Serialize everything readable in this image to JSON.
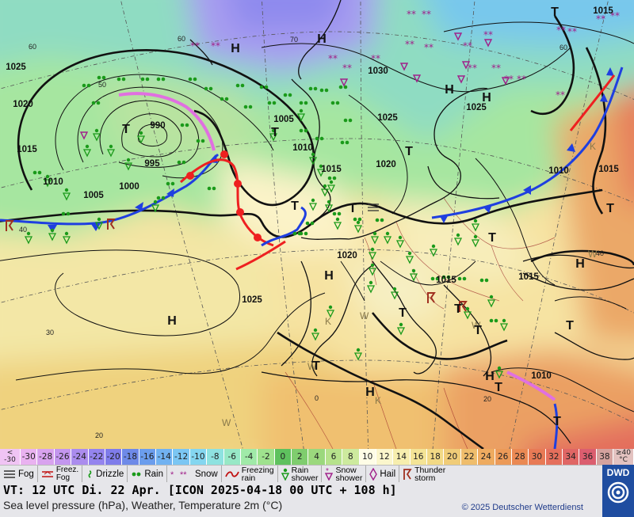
{
  "map": {
    "pressure_labels": [
      {
        "id": "p1",
        "text": "1025"
      },
      {
        "id": "p2",
        "text": "1020"
      },
      {
        "id": "p3",
        "text": "1015"
      },
      {
        "id": "p4",
        "text": "1010"
      },
      {
        "id": "p5",
        "text": "1005"
      },
      {
        "id": "p6",
        "text": "1000"
      },
      {
        "id": "p7",
        "text": "995"
      },
      {
        "id": "p8",
        "text": "990"
      },
      {
        "id": "p9",
        "text": "1005"
      },
      {
        "id": "p10",
        "text": "1010"
      },
      {
        "id": "p11",
        "text": "1015"
      },
      {
        "id": "p12",
        "text": "1020"
      },
      {
        "id": "p13",
        "text": "1030"
      },
      {
        "id": "p14",
        "text": "1025"
      },
      {
        "id": "p15",
        "text": "1025"
      },
      {
        "id": "p16",
        "text": "1015"
      },
      {
        "id": "p17",
        "text": "1010"
      },
      {
        "id": "p18",
        "text": "1015"
      },
      {
        "id": "p19",
        "text": "1020"
      },
      {
        "id": "p20",
        "text": "1015"
      },
      {
        "id": "p21",
        "text": "1015"
      },
      {
        "id": "p22",
        "text": "1025"
      },
      {
        "id": "p23",
        "text": "1010"
      }
    ],
    "centers": [
      {
        "id": "c1",
        "text": "H"
      },
      {
        "id": "c2",
        "text": "H"
      },
      {
        "id": "c3",
        "text": "T"
      },
      {
        "id": "c4",
        "text": "T"
      },
      {
        "id": "c5",
        "text": "T"
      },
      {
        "id": "c6",
        "text": "H"
      },
      {
        "id": "c7",
        "text": "H"
      },
      {
        "id": "c8",
        "text": "T"
      },
      {
        "id": "c9",
        "text": "T"
      },
      {
        "id": "c10",
        "text": "H"
      },
      {
        "id": "c11",
        "text": "T"
      },
      {
        "id": "c12",
        "text": "T"
      },
      {
        "id": "c13",
        "text": "H"
      },
      {
        "id": "c14",
        "text": "T"
      },
      {
        "id": "c15",
        "text": "T"
      },
      {
        "id": "c16",
        "text": "H"
      },
      {
        "id": "c17",
        "text": "T"
      },
      {
        "id": "c18",
        "text": "T"
      },
      {
        "id": "c19",
        "text": "H"
      },
      {
        "id": "c20",
        "text": "T"
      },
      {
        "id": "c21",
        "text": "T"
      },
      {
        "id": "c22",
        "text": "T"
      },
      {
        "id": "c23",
        "text": "H"
      },
      {
        "id": "c24",
        "text": "T"
      }
    ],
    "grid_labels": [
      "60",
      "60",
      "60",
      "70",
      "50",
      "40",
      "40",
      "30",
      "20",
      "0",
      "20"
    ],
    "markers": [
      "K",
      "W",
      "K",
      "W",
      "W",
      "W",
      "K",
      "W"
    ]
  },
  "color_scale": {
    "low_label_1": "<",
    "low_label_2": "-30",
    "high_label_1": "≥40",
    "high_label_2": "°C",
    "values": [
      "-30",
      "-28",
      "-26",
      "-24",
      "-22",
      "-20",
      "-18",
      "-16",
      "-14",
      "-12",
      "-10",
      "-8",
      "-6",
      "-4",
      "-2",
      "0",
      "2",
      "4",
      "6",
      "8",
      "10",
      "12",
      "14",
      "16",
      "18",
      "20",
      "22",
      "24",
      "26",
      "28",
      "30",
      "32",
      "34",
      "36",
      "38"
    ],
    "colors": [
      "#e9b2f0",
      "#d8a2ee",
      "#c396ee",
      "#ab8cee",
      "#9484ee",
      "#7f7cea",
      "#6e8ae8",
      "#6b9ded",
      "#71b2f1",
      "#7bc6f3",
      "#84d6f0",
      "#8ee2e0",
      "#97e8c6",
      "#a0eaa8",
      "#9fe28e",
      "#5ec15e",
      "#7fcd6e",
      "#9bd87d",
      "#b6e28c",
      "#cdea9e",
      "#fffde6",
      "#fbf6cc",
      "#f7eeae",
      "#f4e496",
      "#f2d985",
      "#f0cc78",
      "#efbd6c",
      "#eeab60",
      "#ec9a58",
      "#ea8953",
      "#e87a55",
      "#e56f5c",
      "#e06665",
      "#db5e6f",
      "#d4a29e"
    ]
  },
  "legend": {
    "fog": "Fog",
    "freezing_fog_1": "Freez.",
    "freezing_fog_2": "Fog",
    "drizzle": "Drizzle",
    "rain": "Rain",
    "snow": "Snow",
    "freezing_rain_1": "Freezing",
    "freezing_rain_2": "rain",
    "rain_shower_1": "Rain",
    "rain_shower_2": "shower",
    "snow_shower_1": "Snow",
    "snow_shower_2": "shower",
    "hail": "Hail",
    "thunderstorm_1": "Thunder",
    "thunderstorm_2": "storm"
  },
  "info": {
    "valid_time": "VT: 12 UTC Di.  22 Apr. [ICON 2025-04-18  00 UTC + 108 h]",
    "description": "Sea level pressure (hPa), Weather, Temperature 2m (°C)",
    "copyright": "© 2025 Deutscher Wetterdienst",
    "logo": "DWD"
  },
  "colors": {
    "cold_front": "#1f3fe0",
    "warm_front": "#ee2020",
    "occlusion": "#e070e0",
    "rain_symbol": "#1a9a1a",
    "snow_symbol": "#a0208a",
    "thunder_symbol": "#a03020",
    "brand": "#1f4da0"
  }
}
